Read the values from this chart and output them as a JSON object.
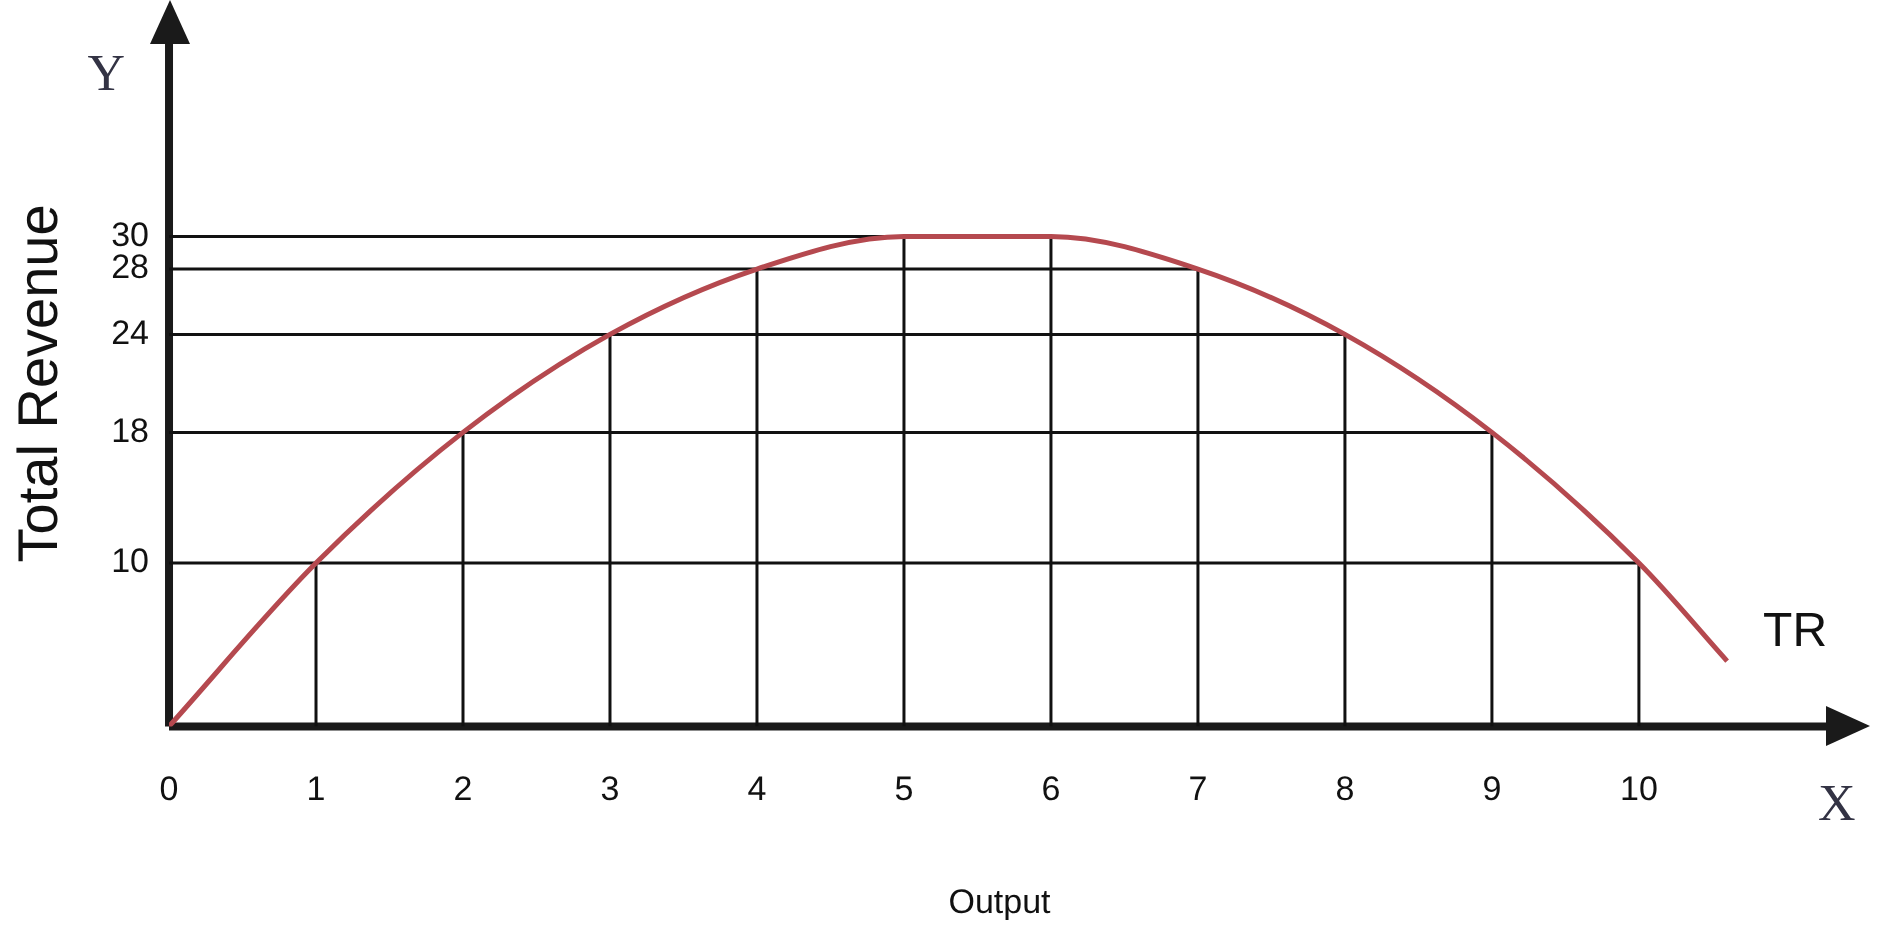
{
  "chart_data": {
    "type": "line",
    "xlabel": "Output",
    "ylabel": "Total Revenue",
    "annotations": [
      "Y",
      "X"
    ],
    "xlim": [
      0,
      11.3
    ],
    "ylim": [
      0,
      42
    ],
    "xticks": [
      0,
      1,
      2,
      3,
      4,
      5,
      6,
      7,
      8,
      9,
      10
    ],
    "yticks": [
      10,
      18,
      24,
      28,
      30
    ],
    "legend": false,
    "marker": "none",
    "line_style": "solid",
    "series": [
      {
        "name": "TR",
        "color": "#b5494f",
        "x": [
          0,
          1,
          2,
          3,
          4,
          5,
          6,
          7,
          8,
          9,
          10,
          10.6
        ],
        "values": [
          0,
          10,
          18,
          24,
          28,
          30,
          30,
          28,
          24,
          18,
          10,
          4
        ]
      },
      {
        "color": "#111111",
        "x": [
          0,
          10
        ],
        "values": [
          10,
          10
        ]
      },
      {
        "color": "#111111",
        "x": [
          0,
          9
        ],
        "values": [
          18,
          18
        ]
      },
      {
        "color": "#111111",
        "x": [
          0,
          8
        ],
        "values": [
          24,
          24
        ]
      },
      {
        "color": "#111111",
        "x": [
          0,
          7
        ],
        "values": [
          28,
          28
        ]
      },
      {
        "color": "#111111",
        "x": [
          0,
          6
        ],
        "values": [
          30,
          30
        ]
      },
      {
        "color": "#111111",
        "x": [
          1,
          1
        ],
        "values": [
          0,
          10
        ]
      },
      {
        "color": "#111111",
        "x": [
          2,
          2
        ],
        "values": [
          0,
          18
        ]
      },
      {
        "color": "#111111",
        "x": [
          3,
          3
        ],
        "values": [
          0,
          24
        ]
      },
      {
        "color": "#111111",
        "x": [
          4,
          4
        ],
        "values": [
          0,
          28
        ]
      },
      {
        "color": "#111111",
        "x": [
          5,
          5
        ],
        "values": [
          0,
          30
        ]
      },
      {
        "color": "#111111",
        "x": [
          6,
          6
        ],
        "values": [
          0,
          30
        ]
      },
      {
        "color": "#111111",
        "x": [
          7,
          7
        ],
        "values": [
          0,
          28
        ]
      },
      {
        "color": "#111111",
        "x": [
          8,
          8
        ],
        "values": [
          0,
          24
        ]
      },
      {
        "color": "#111111",
        "x": [
          9,
          9
        ],
        "values": [
          0,
          18
        ]
      },
      {
        "color": "#111111",
        "x": [
          10,
          10
        ],
        "values": [
          0,
          10
        ]
      }
    ]
  }
}
